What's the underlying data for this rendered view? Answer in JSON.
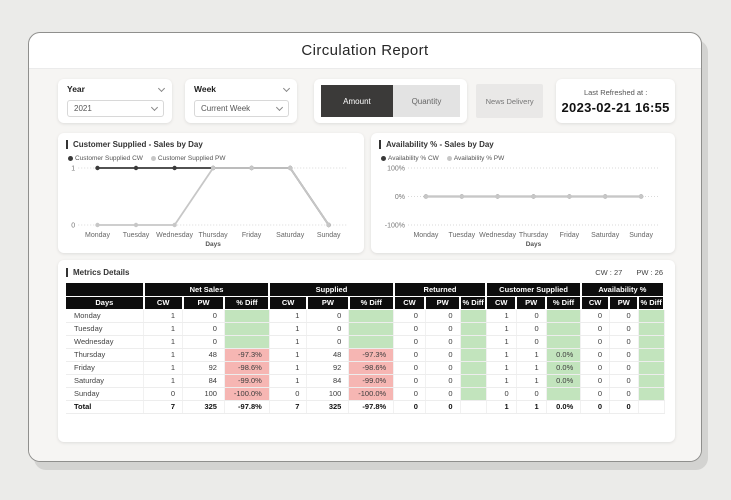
{
  "header": {
    "title": "Circulation Report"
  },
  "filters": {
    "year": {
      "label": "Year",
      "value": "2021"
    },
    "week": {
      "label": "Week",
      "value": "Current Week"
    },
    "toggle": {
      "amount": "Amount",
      "quantity": "Quantity"
    },
    "news_delivery": "News Delivery",
    "last_refreshed": {
      "label": "Last Refreshed at :",
      "value": "2023-02-21 16:55"
    }
  },
  "chart_data": [
    {
      "type": "line",
      "title": "Customer Supplied - Sales by Day",
      "categories": [
        "Monday",
        "Tuesday",
        "Wednesday",
        "Thursday",
        "Friday",
        "Saturday",
        "Sunday"
      ],
      "series": [
        {
          "name": "Customer Supplied CW",
          "color": "#3a3a3a",
          "values": [
            1,
            1,
            1,
            1,
            1,
            1,
            0
          ]
        },
        {
          "name": "Customer Supplied PW",
          "color": "#c7c7c7",
          "values": [
            0,
            0,
            0,
            1,
            1,
            1,
            0
          ]
        }
      ],
      "xlabel": "Days",
      "ylim": [
        0,
        1
      ],
      "yticks": [
        1,
        0
      ],
      "ytick_labels": [
        "1",
        "0"
      ],
      "grid": "dotted",
      "legend_position": "top"
    },
    {
      "type": "line",
      "title": "Availability % - Sales by Day",
      "categories": [
        "Monday",
        "Tuesday",
        "Wednesday",
        "Thursday",
        "Friday",
        "Saturday",
        "Sunday"
      ],
      "series": [
        {
          "name": "Availability % CW",
          "color": "#3a3a3a",
          "values": [
            0,
            0,
            0,
            0,
            0,
            0,
            0
          ]
        },
        {
          "name": "Availability % PW",
          "color": "#c7c7c7",
          "values": [
            0,
            0,
            0,
            0,
            0,
            0,
            0
          ]
        }
      ],
      "xlabel": "Days",
      "ylim": [
        -100,
        100
      ],
      "yticks": [
        100,
        0,
        -100
      ],
      "ytick_labels": [
        "100%",
        "0%",
        "-100%"
      ],
      "grid": "dotted",
      "legend_position": "top"
    }
  ],
  "table": {
    "title": "Metrics Details",
    "week_info": {
      "cw": "CW : 27",
      "pw": "PW : 26"
    },
    "days_header": "Days",
    "groups": [
      "Net Sales",
      "Supplied",
      "Returned",
      "Customer Supplied",
      "Availability %"
    ],
    "sub_headers": [
      "CW",
      "PW",
      "% Diff"
    ],
    "rows": [
      {
        "day": "Monday",
        "cells": [
          {
            "v": "1"
          },
          {
            "v": "0"
          },
          {
            "v": "",
            "bg": "g"
          },
          {
            "v": "1"
          },
          {
            "v": "0"
          },
          {
            "v": "",
            "bg": "g"
          },
          {
            "v": "0"
          },
          {
            "v": "0"
          },
          {
            "v": "",
            "bg": "g"
          },
          {
            "v": "1"
          },
          {
            "v": "0"
          },
          {
            "v": "",
            "bg": "g"
          },
          {
            "v": "0"
          },
          {
            "v": "0"
          },
          {
            "v": "",
            "bg": "g"
          }
        ]
      },
      {
        "day": "Tuesday",
        "cells": [
          {
            "v": "1"
          },
          {
            "v": "0"
          },
          {
            "v": "",
            "bg": "g"
          },
          {
            "v": "1"
          },
          {
            "v": "0"
          },
          {
            "v": "",
            "bg": "g"
          },
          {
            "v": "0"
          },
          {
            "v": "0"
          },
          {
            "v": "",
            "bg": "g"
          },
          {
            "v": "1"
          },
          {
            "v": "0"
          },
          {
            "v": "",
            "bg": "g"
          },
          {
            "v": "0"
          },
          {
            "v": "0"
          },
          {
            "v": "",
            "bg": "g"
          }
        ]
      },
      {
        "day": "Wednesday",
        "cells": [
          {
            "v": "1"
          },
          {
            "v": "0"
          },
          {
            "v": "",
            "bg": "g"
          },
          {
            "v": "1"
          },
          {
            "v": "0"
          },
          {
            "v": "",
            "bg": "g"
          },
          {
            "v": "0"
          },
          {
            "v": "0"
          },
          {
            "v": "",
            "bg": "g"
          },
          {
            "v": "1"
          },
          {
            "v": "0"
          },
          {
            "v": "",
            "bg": "g"
          },
          {
            "v": "0"
          },
          {
            "v": "0"
          },
          {
            "v": "",
            "bg": "g"
          }
        ]
      },
      {
        "day": "Thursday",
        "cells": [
          {
            "v": "1"
          },
          {
            "v": "48"
          },
          {
            "v": "-97.3%",
            "bg": "r"
          },
          {
            "v": "1"
          },
          {
            "v": "48"
          },
          {
            "v": "-97.3%",
            "bg": "r"
          },
          {
            "v": "0"
          },
          {
            "v": "0"
          },
          {
            "v": "",
            "bg": "g"
          },
          {
            "v": "1"
          },
          {
            "v": "1"
          },
          {
            "v": "0.0%",
            "bg": "g"
          },
          {
            "v": "0"
          },
          {
            "v": "0"
          },
          {
            "v": "",
            "bg": "g"
          }
        ]
      },
      {
        "day": "Friday",
        "cells": [
          {
            "v": "1"
          },
          {
            "v": "92"
          },
          {
            "v": "-98.6%",
            "bg": "r"
          },
          {
            "v": "1"
          },
          {
            "v": "92"
          },
          {
            "v": "-98.6%",
            "bg": "r"
          },
          {
            "v": "0"
          },
          {
            "v": "0"
          },
          {
            "v": "",
            "bg": "g"
          },
          {
            "v": "1"
          },
          {
            "v": "1"
          },
          {
            "v": "0.0%",
            "bg": "g"
          },
          {
            "v": "0"
          },
          {
            "v": "0"
          },
          {
            "v": "",
            "bg": "g"
          }
        ]
      },
      {
        "day": "Saturday",
        "cells": [
          {
            "v": "1"
          },
          {
            "v": "84"
          },
          {
            "v": "-99.0%",
            "bg": "r"
          },
          {
            "v": "1"
          },
          {
            "v": "84"
          },
          {
            "v": "-99.0%",
            "bg": "r"
          },
          {
            "v": "0"
          },
          {
            "v": "0"
          },
          {
            "v": "",
            "bg": "g"
          },
          {
            "v": "1"
          },
          {
            "v": "1"
          },
          {
            "v": "0.0%",
            "bg": "g"
          },
          {
            "v": "0"
          },
          {
            "v": "0"
          },
          {
            "v": "",
            "bg": "g"
          }
        ]
      },
      {
        "day": "Sunday",
        "cells": [
          {
            "v": "0"
          },
          {
            "v": "100"
          },
          {
            "v": "-100.0%",
            "bg": "r"
          },
          {
            "v": "0"
          },
          {
            "v": "100"
          },
          {
            "v": "-100.0%",
            "bg": "r"
          },
          {
            "v": "0"
          },
          {
            "v": "0"
          },
          {
            "v": "",
            "bg": "g"
          },
          {
            "v": "0"
          },
          {
            "v": "0"
          },
          {
            "v": "",
            "bg": "g"
          },
          {
            "v": "0"
          },
          {
            "v": "0"
          },
          {
            "v": "",
            "bg": "g"
          }
        ]
      },
      {
        "day": "Total",
        "total": true,
        "cells": [
          {
            "v": "7"
          },
          {
            "v": "325"
          },
          {
            "v": "-97.8%"
          },
          {
            "v": "7"
          },
          {
            "v": "325"
          },
          {
            "v": "-97.8%"
          },
          {
            "v": "0"
          },
          {
            "v": "0"
          },
          {
            "v": ""
          },
          {
            "v": "1"
          },
          {
            "v": "1"
          },
          {
            "v": "0.0%"
          },
          {
            "v": "0"
          },
          {
            "v": "0"
          },
          {
            "v": ""
          }
        ]
      }
    ]
  },
  "colors": {
    "accent_dark": "#3a3a3a",
    "positive_bg": "#c2e4bd",
    "negative_bg": "#f6b6b3",
    "header_bg": "#0d0d0d"
  }
}
